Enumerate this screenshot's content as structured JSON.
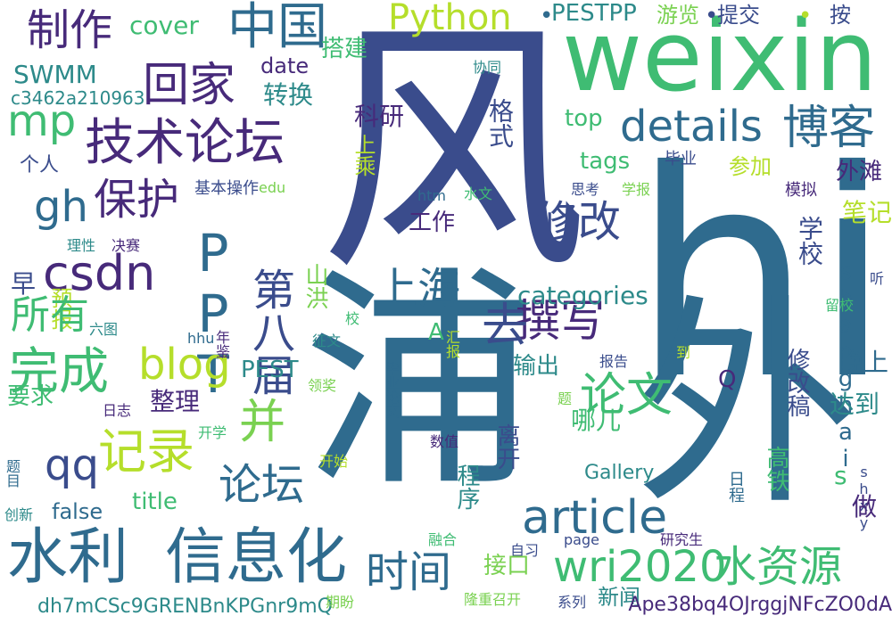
{
  "palette": {
    "background": "#ffffff",
    "colors": [
      "#2f6b8e",
      "#3a4c8c",
      "#472a7a",
      "#2d8a8a",
      "#3fbc73",
      "#7ad151",
      "#b5de2b",
      "#e4e419"
    ]
  },
  "words": [
    {
      "text": "风"
    },
    {
      "text": "hi"
    },
    {
      "text": "weixin"
    },
    {
      "text": "浦"
    },
    {
      "text": "外"
    },
    {
      "text": "水利"
    },
    {
      "text": "信息化"
    },
    {
      "text": "技术论坛"
    },
    {
      "text": "中国"
    },
    {
      "text": "制作"
    },
    {
      "text": "回家"
    },
    {
      "text": "Python"
    },
    {
      "text": "details"
    },
    {
      "text": "博客"
    },
    {
      "text": "mp"
    },
    {
      "text": "gh"
    },
    {
      "text": "保护"
    },
    {
      "text": "csdn"
    },
    {
      "text": "PPT"
    },
    {
      "text": "第八届"
    },
    {
      "text": "上海"
    },
    {
      "text": "修改"
    },
    {
      "text": "blog"
    },
    {
      "text": "完成"
    },
    {
      "text": "撰写"
    },
    {
      "text": "去"
    },
    {
      "text": "论文"
    },
    {
      "text": "并"
    },
    {
      "text": "记录"
    },
    {
      "text": "qq"
    },
    {
      "text": "论坛"
    },
    {
      "text": "article"
    },
    {
      "text": "wri2020"
    },
    {
      "text": "水资源"
    },
    {
      "text": "时间"
    },
    {
      "text": "cover"
    },
    {
      "text": "搭建"
    },
    {
      "text": "PESTPP"
    },
    {
      "text": "游览"
    },
    {
      "text": "提交"
    },
    {
      "text": "按"
    },
    {
      "text": "SWMM"
    },
    {
      "text": "date"
    },
    {
      "text": "转换"
    },
    {
      "text": "科研"
    },
    {
      "text": "格式"
    },
    {
      "text": "top"
    },
    {
      "text": "tags"
    },
    {
      "text": "参加"
    },
    {
      "text": "外滩"
    },
    {
      "text": "个人"
    },
    {
      "text": "c3462a210963"
    },
    {
      "text": "协同"
    },
    {
      "text": "上乘"
    },
    {
      "text": "毕业"
    },
    {
      "text": "模拟"
    },
    {
      "text": "基本操作"
    },
    {
      "text": "edu"
    },
    {
      "text": "htm"
    },
    {
      "text": "水文"
    },
    {
      "text": "思考"
    },
    {
      "text": "学报"
    },
    {
      "text": "笔记"
    },
    {
      "text": "早"
    },
    {
      "text": "预报"
    },
    {
      "text": "工作"
    },
    {
      "text": "山洪"
    },
    {
      "text": "categories"
    },
    {
      "text": "学校"
    },
    {
      "text": "shanghai"
    },
    {
      "text": "理性"
    },
    {
      "text": "决赛"
    },
    {
      "text": "所有"
    },
    {
      "text": "年鉴"
    },
    {
      "text": "征文"
    },
    {
      "text": "A"
    },
    {
      "text": "输出"
    },
    {
      "text": "修改稿"
    },
    {
      "text": "留校"
    },
    {
      "text": "听"
    },
    {
      "text": "六图"
    },
    {
      "text": "hhu"
    },
    {
      "text": "校"
    },
    {
      "text": "汇报"
    },
    {
      "text": "报告"
    },
    {
      "text": "到"
    },
    {
      "text": "PEST"
    },
    {
      "text": "Q"
    },
    {
      "text": "晚上"
    },
    {
      "text": "领奖"
    },
    {
      "text": "毕业论文"
    },
    {
      "text": "题"
    },
    {
      "text": "要求"
    },
    {
      "text": "日志"
    },
    {
      "text": "整理"
    },
    {
      "text": "哪儿"
    },
    {
      "text": "达到"
    },
    {
      "text": "开学"
    },
    {
      "text": "s"
    },
    {
      "text": "离开"
    },
    {
      "text": "题目"
    },
    {
      "text": "数值"
    },
    {
      "text": "开始"
    },
    {
      "text": "title"
    },
    {
      "text": "程序"
    },
    {
      "text": "Gallery"
    },
    {
      "text": "日程"
    },
    {
      "text": "高铁"
    },
    {
      "text": "shxy"
    },
    {
      "text": "做"
    },
    {
      "text": "创新"
    },
    {
      "text": "false"
    },
    {
      "text": "融合"
    },
    {
      "text": "page"
    },
    {
      "text": "研究生"
    },
    {
      "text": "自习"
    },
    {
      "text": "接口"
    },
    {
      "text": "dh7mCSc9GRENBnKPGnr9mQ"
    },
    {
      "text": "隆重召开"
    },
    {
      "text": "期盼"
    },
    {
      "text": "系列"
    },
    {
      "text": "新闻"
    },
    {
      "text": "Ape38bq4OJrggjNFcZO0dA"
    },
    {
      "text": "•"
    },
    {
      "text": "•"
    },
    {
      "text": "•"
    }
  ]
}
